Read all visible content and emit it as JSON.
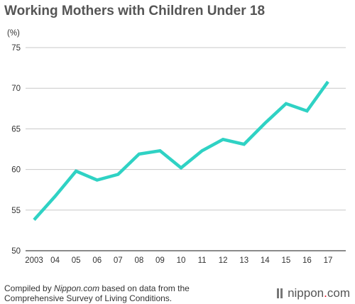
{
  "title": "Working Mothers with Children Under 18",
  "footer": {
    "prefix": "Compiled by ",
    "source_name": "Nippon.com",
    "suffix": " based on data from the",
    "line2": "Comprehensive Survey of Living Conditions."
  },
  "brand": {
    "name_part1": "nippon",
    "dot": ".",
    "name_part2": "com",
    "dot_color": "#e60012"
  },
  "chart_data": {
    "type": "line",
    "ylabel": "(%)",
    "ylim": [
      50,
      75
    ],
    "yticks": [
      50,
      55,
      60,
      65,
      70,
      75
    ],
    "grid": true,
    "x_tick_labels": [
      "2003",
      "04",
      "05",
      "06",
      "07",
      "08",
      "09",
      "10",
      "11",
      "12",
      "13",
      "14",
      "15",
      "16",
      "17"
    ],
    "series": [
      {
        "values": [
          53.8,
          56.7,
          59.8,
          58.7,
          59.4,
          61.9,
          62.3,
          60.2,
          62.3,
          63.7,
          63.1,
          65.7,
          68.1,
          67.2,
          70.8
        ],
        "color": "#2fd2c4"
      }
    ]
  }
}
